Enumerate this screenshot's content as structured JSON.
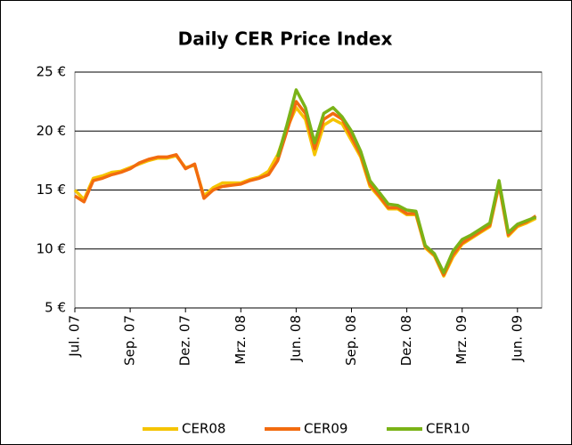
{
  "chart_data": {
    "type": "line",
    "title": "Daily CER Price Index",
    "categories": [
      "Jul. 07",
      null,
      null,
      null,
      null,
      null,
      "Sep. 07",
      null,
      null,
      null,
      null,
      null,
      "Dez. 07",
      null,
      null,
      null,
      null,
      null,
      "Mrz. 08",
      null,
      null,
      null,
      null,
      null,
      "Jun. 08",
      null,
      null,
      null,
      null,
      null,
      "Sep. 08",
      null,
      null,
      null,
      null,
      null,
      "Dez. 08",
      null,
      null,
      null,
      null,
      null,
      "Mrz. 09",
      null,
      null,
      null,
      null,
      null,
      "Jun. 09",
      null,
      null
    ],
    "series": [
      {
        "name": "CER08",
        "color": "#f5c400",
        "values": [
          15.0,
          14.2,
          16.0,
          16.2,
          16.5,
          16.6,
          16.9,
          17.2,
          17.5,
          17.7,
          17.7,
          17.9,
          16.9,
          17.1,
          14.5,
          15.2,
          15.6,
          15.6,
          15.6,
          15.9,
          16.1,
          16.6,
          18.0,
          20.2,
          22.0,
          21.0,
          18.0,
          20.5,
          21.0,
          20.6,
          19.2,
          17.8,
          15.3,
          14.4,
          13.4,
          13.4,
          12.9,
          12.9,
          10.1,
          9.4,
          7.7,
          9.3,
          10.4,
          10.9,
          11.4,
          11.9,
          15.4,
          11.1,
          11.9,
          12.2,
          12.6
        ]
      },
      {
        "name": "CER09",
        "color": "#f26b0f",
        "values": [
          14.5,
          14.0,
          15.8,
          16.0,
          16.3,
          16.5,
          16.8,
          17.3,
          17.6,
          17.8,
          17.8,
          18.0,
          16.8,
          17.2,
          14.3,
          15.0,
          15.3,
          15.4,
          15.5,
          15.8,
          16.0,
          16.3,
          17.5,
          20.0,
          22.5,
          21.5,
          18.5,
          21.0,
          21.5,
          21.0,
          19.5,
          18.0,
          15.5,
          14.5,
          13.5,
          13.5,
          13.0,
          13.0,
          10.2,
          9.5,
          7.8,
          9.5,
          10.5,
          11.0,
          11.5,
          12.0,
          15.5,
          11.2,
          12.0,
          12.3,
          12.8
        ]
      },
      {
        "name": "CER10",
        "color": "#7ab317",
        "values": [
          null,
          null,
          null,
          null,
          null,
          null,
          null,
          null,
          null,
          null,
          null,
          null,
          null,
          null,
          null,
          null,
          null,
          null,
          null,
          null,
          null,
          null,
          17.8,
          20.5,
          23.5,
          22.0,
          19.0,
          21.5,
          22.0,
          21.2,
          20.0,
          18.3,
          15.8,
          14.8,
          13.8,
          13.7,
          13.3,
          13.2,
          10.3,
          9.6,
          8.0,
          9.8,
          10.8,
          11.2,
          11.7,
          12.2,
          15.8,
          11.4,
          12.1,
          12.4,
          12.7
        ]
      }
    ],
    "ylim": [
      5,
      25
    ],
    "yticks": [
      {
        "value": 5,
        "label": "5 €"
      },
      {
        "value": 10,
        "label": "10 €"
      },
      {
        "value": 15,
        "label": "15 €"
      },
      {
        "value": 20,
        "label": "20 €"
      },
      {
        "value": 25,
        "label": "25 €"
      }
    ],
    "grid": true,
    "legend": "bottom"
  }
}
